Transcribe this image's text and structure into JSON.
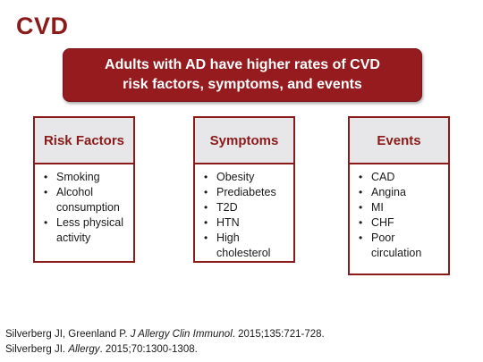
{
  "slide": {
    "title": "CVD",
    "banner_line1": "Adults with AD have higher rates of CVD",
    "banner_line2": "risk factors, symptoms, and events"
  },
  "columns": {
    "risk": {
      "title": "Risk Factors",
      "items": [
        "Smoking",
        "Alcohol consumption",
        "Less physical activity"
      ]
    },
    "symptoms": {
      "title": "Symptoms",
      "items": [
        "Obesity",
        "Prediabetes",
        "T2D",
        "HTN",
        "High cholesterol"
      ]
    },
    "events": {
      "title": "Events",
      "items": [
        "CAD",
        "Angina",
        "MI",
        "CHF",
        "Poor circulation"
      ]
    }
  },
  "references": {
    "ref1_authors": "Silverberg JI, Greenland P. ",
    "ref1_journal": "J Allergy Clin Immunol",
    "ref1_rest": ". 2015;135:721-728.",
    "ref2_authors": "Silverberg JI. ",
    "ref2_journal": "Allergy",
    "ref2_rest": ". 2015;70:1300-1308."
  },
  "colors": {
    "accent": "#951b1e",
    "header_bg": "#e7e7e9"
  }
}
